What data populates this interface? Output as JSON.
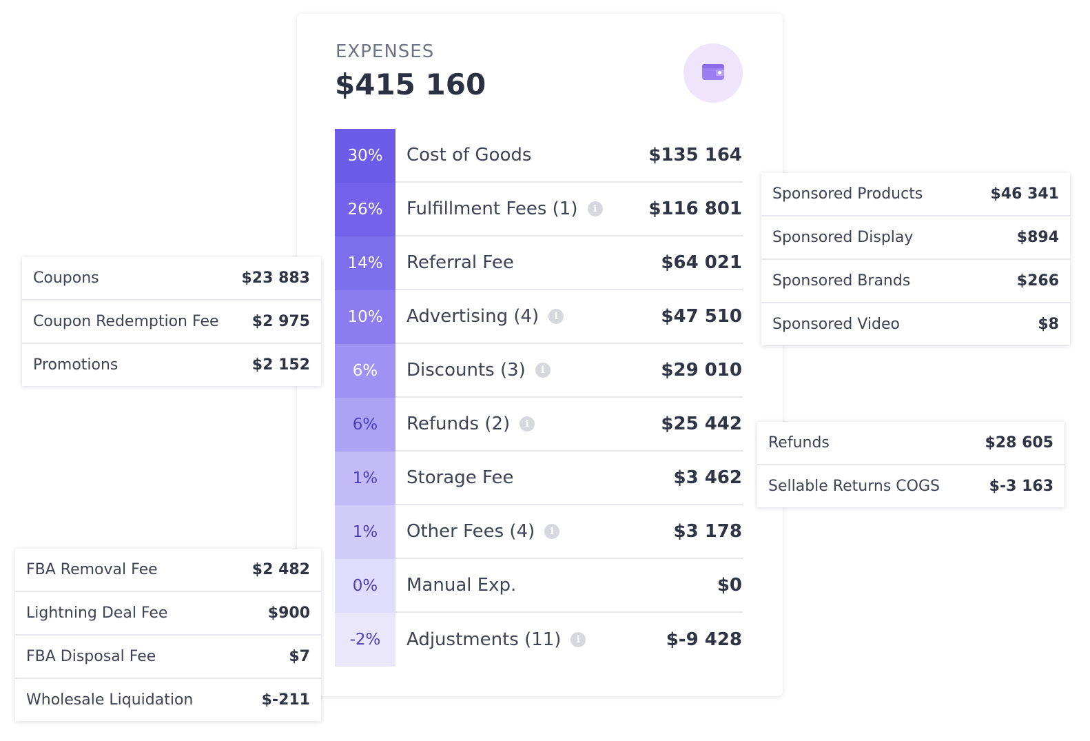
{
  "expenses": {
    "label": "EXPENSES",
    "total": "$415 160",
    "icon": "wallet-icon",
    "rows": [
      {
        "pct": "30%",
        "name": "Cost of Goods",
        "value": "$135 164",
        "bg": "#6c5ce7",
        "fg": "#ffffff"
      },
      {
        "pct": "26%",
        "name": "Fulfillment Fees (1)",
        "info": true,
        "value": "$116 801",
        "bg": "#7463ea",
        "fg": "#ffffff"
      },
      {
        "pct": "14%",
        "name": "Referral Fee",
        "value": "$64 021",
        "bg": "#7d6eec",
        "fg": "#ffffff"
      },
      {
        "pct": "10%",
        "name": "Advertising (4)",
        "info": true,
        "value": "$47 510",
        "bg": "#8b7def",
        "fg": "#ffffff"
      },
      {
        "pct": "6%",
        "name": "Discounts (3)",
        "info": true,
        "value": "$29 010",
        "bg": "#9e92f2",
        "fg": "#ffffff"
      },
      {
        "pct": "6%",
        "name": "Refunds (2)",
        "info": true,
        "value": "$25 442",
        "bg": "#ada3f4",
        "fg": "#4a3fb5"
      },
      {
        "pct": "1%",
        "name": "Storage Fee",
        "value": "$3 462",
        "bg": "#c3bbf7",
        "fg": "#4a3fb5"
      },
      {
        "pct": "1%",
        "name": "Other Fees (4)",
        "info": true,
        "value": "$3 178",
        "bg": "#d2ccf9",
        "fg": "#4a3fb5"
      },
      {
        "pct": "0%",
        "name": "Manual Exp.",
        "value": "$0",
        "bg": "#e0dcfb",
        "fg": "#4a3fb5"
      },
      {
        "pct": "-2%",
        "name": "Adjustments (11)",
        "info": true,
        "value": "$-9 428",
        "bg": "#eae7fc",
        "fg": "#4a3fb5"
      }
    ]
  },
  "panels": {
    "discounts": {
      "rows": [
        {
          "name": "Coupons",
          "value": "$23 883"
        },
        {
          "name": "Coupon Redemption Fee",
          "value": "$2 975"
        },
        {
          "name": "Promotions",
          "value": "$2 152"
        }
      ]
    },
    "other_fees": {
      "rows": [
        {
          "name": "FBA Removal Fee",
          "value": "$2 482"
        },
        {
          "name": "Lightning Deal Fee",
          "value": "$900"
        },
        {
          "name": "FBA Disposal Fee",
          "value": "$7"
        },
        {
          "name": "Wholesale Liquidation",
          "value": "$-211"
        }
      ]
    },
    "advertising": {
      "rows": [
        {
          "name": "Sponsored Products",
          "value": "$46 341"
        },
        {
          "name": "Sponsored Display",
          "value": "$894"
        },
        {
          "name": "Sponsored Brands",
          "value": "$266"
        },
        {
          "name": "Sponsored Video",
          "value": "$8"
        }
      ]
    },
    "refunds": {
      "rows": [
        {
          "name": "Refunds",
          "value": "$28 605"
        },
        {
          "name": "Sellable Returns COGS",
          "value": "$-3 163"
        }
      ]
    }
  }
}
